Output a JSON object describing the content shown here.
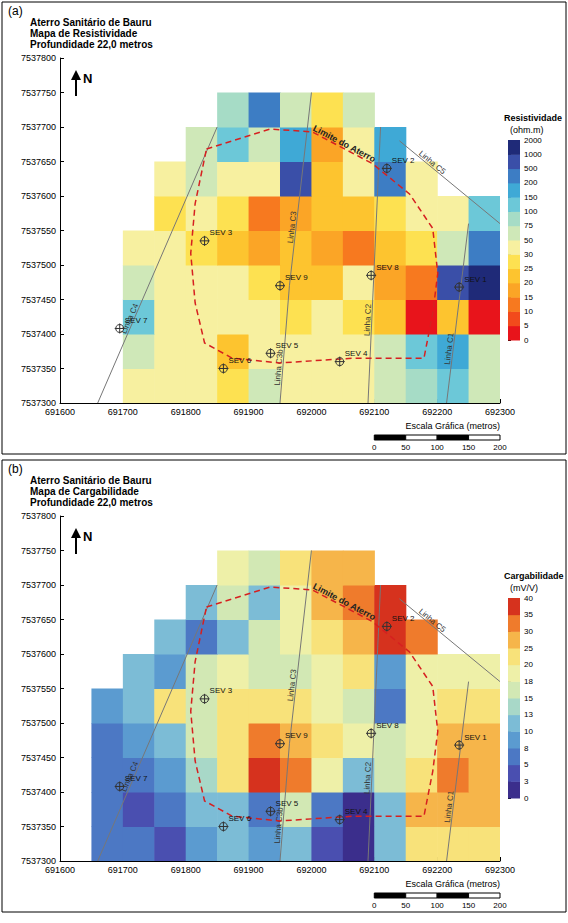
{
  "chart_data": [
    {
      "type": "heatmap",
      "label": "(a)",
      "title": "Aterro Sanitário de Bauru",
      "subtitle": "Mapa de Resistividade",
      "depth_label": "Profundidade 22,0 metros",
      "north": "N",
      "xlim": [
        691600,
        692300
      ],
      "xticks": [
        691600,
        691700,
        691800,
        691900,
        692000,
        692100,
        692200,
        692300
      ],
      "ylim": [
        7537300,
        7537800
      ],
      "yticks": [
        7537300,
        7537350,
        7537400,
        7537450,
        7537500,
        7537550,
        7537600,
        7537650,
        7537700,
        7537750,
        7537800
      ],
      "colorbar": {
        "title": "Resistividade",
        "unit": "(ohm.m)",
        "ticks": [
          0,
          5,
          10,
          15,
          20,
          25,
          30,
          50,
          75,
          100,
          150,
          200,
          500,
          1000,
          2000
        ],
        "colors": [
          "#e8141b",
          "#f24a1c",
          "#f7791f",
          "#fba526",
          "#fdc42f",
          "#fde151",
          "#f7f0a0",
          "#cfe8b8",
          "#a6dcc6",
          "#6cc8d8",
          "#3fa9d6",
          "#3d7dc4",
          "#3a4fa8",
          "#1f2a78"
        ]
      },
      "cells": {
        "x": [
          691625,
          691675,
          691725,
          691775,
          691825,
          691875,
          691925,
          691975,
          692025,
          692075,
          692125,
          692175,
          692225,
          692275
        ],
        "y": [
          7537325,
          7537375,
          7537425,
          7537475,
          7537525,
          7537575,
          7537625,
          7537675,
          7537725
        ],
        "values": [
          [
            null,
            null,
            40,
            35,
            35,
            25,
            50,
            35,
            30,
            40,
            60,
            80,
            100,
            60
          ],
          [
            null,
            null,
            50,
            40,
            30,
            20,
            30,
            40,
            35,
            30,
            50,
            100,
            150,
            50
          ],
          [
            null,
            null,
            100,
            40,
            30,
            30,
            35,
            25,
            30,
            25,
            20,
            3,
            20,
            2
          ],
          [
            null,
            null,
            50,
            35,
            30,
            30,
            25,
            20,
            20,
            30,
            15,
            12,
            500,
            1000
          ],
          [
            null,
            null,
            30,
            30,
            25,
            20,
            15,
            20,
            15,
            10,
            20,
            25,
            50,
            200
          ],
          [
            null,
            null,
            null,
            25,
            30,
            25,
            12,
            15,
            20,
            20,
            25,
            30,
            40,
            100
          ],
          [
            null,
            null,
            null,
            40,
            50,
            35,
            30,
            500,
            20,
            30,
            200,
            40,
            null,
            null
          ],
          [
            null,
            null,
            null,
            null,
            60,
            100,
            50,
            150,
            15,
            40,
            150,
            null,
            null,
            null
          ],
          [
            null,
            null,
            null,
            null,
            null,
            75,
            200,
            50,
            25,
            50,
            null,
            null,
            null,
            null
          ]
        ]
      },
      "boundary": {
        "label": "Limite do Aterro",
        "x": [
          691833,
          691934,
          692001,
          692097,
          692156,
          692193,
          692201,
          692193,
          692179,
          692067,
          691949,
          691874,
          691830,
          691815,
          691808,
          691815
        ],
        "y": [
          7537668,
          7537697,
          7537693,
          7537647,
          7537603,
          7537553,
          7537488,
          7537430,
          7537365,
          7537365,
          7537358,
          7537365,
          7537387,
          7537445,
          7537517,
          7537589
        ]
      },
      "lines": [
        {
          "label": "Linha C1",
          "x": [
            692215,
            692250
          ],
          "y": [
            7537300,
            7537560
          ]
        },
        {
          "label": "Linha C2",
          "x": [
            692090,
            692110
          ],
          "y": [
            7537300,
            7537700
          ]
        },
        {
          "label": "Linha C3b",
          "x": [
            691950,
            691965
          ],
          "y": [
            7537300,
            7537470
          ]
        },
        {
          "label": "Linha C3",
          "x": [
            691965,
            692000
          ],
          "y": [
            7537470,
            7537750
          ]
        },
        {
          "label": "Linha C4",
          "x": [
            691660,
            691850
          ],
          "y": [
            7537300,
            7537700
          ]
        },
        {
          "label": "Linha C5",
          "x": [
            692140,
            692300
          ],
          "y": [
            7537680,
            7537560
          ]
        }
      ],
      "points": {
        "labels": [
          "SEV 1",
          "SEV 2",
          "SEV 3",
          "SEV 4",
          "SEV 5",
          "SEV 6",
          "SEV 7",
          "SEV 8",
          "SEV 9"
        ],
        "x": [
          692235,
          692120,
          691830,
          692045,
          691935,
          691860,
          691695,
          692095,
          691950
        ],
        "y": [
          7537468,
          7537640,
          7537535,
          7537360,
          7537372,
          7537350,
          7537408,
          7537485,
          7537470
        ]
      },
      "scale_bar": {
        "title": "Escala Gráfica (metros)",
        "ticks": [
          0,
          50,
          100,
          150,
          200
        ]
      }
    },
    {
      "type": "heatmap",
      "label": "(b)",
      "title": "Aterro Sanitário de Bauru",
      "subtitle": "Mapa de Cargabilidade",
      "depth_label": "Profundidade 22,0 metros",
      "north": "N",
      "xlim": [
        691600,
        692300
      ],
      "xticks": [
        691600,
        691700,
        691800,
        691900,
        692000,
        692100,
        692200,
        692300
      ],
      "ylim": [
        7537300,
        7537800
      ],
      "yticks": [
        7537300,
        7537350,
        7537400,
        7537450,
        7537500,
        7537550,
        7537600,
        7537650,
        7537700,
        7537750,
        7537800
      ],
      "colorbar": {
        "title": "Cargabilidade",
        "unit": "(mV/V)",
        "ticks": [
          0,
          3,
          5,
          8,
          10,
          13,
          15,
          18,
          20,
          25,
          30,
          35,
          40
        ],
        "colors": [
          "#3b2e8c",
          "#4a4fb0",
          "#4c78c4",
          "#5b9bd0",
          "#7cbcd6",
          "#a8d8c8",
          "#d2e8b4",
          "#eef0a8",
          "#f8e27a",
          "#f6b54a",
          "#ef7b2c",
          "#d6321e"
        ]
      },
      "cells": {
        "x": [
          691625,
          691675,
          691725,
          691775,
          691825,
          691875,
          691925,
          691975,
          692025,
          692075,
          692125,
          692175,
          692225,
          692275
        ],
        "y": [
          7537325,
          7537375,
          7537425,
          7537475,
          7537525,
          7537575,
          7537625,
          7537675,
          7537725
        ],
        "values": [
          [
            null,
            5,
            5,
            4,
            8,
            10,
            8,
            10,
            3,
            2,
            10,
            20,
            22,
            20
          ],
          [
            null,
            5,
            4,
            6,
            10,
            12,
            6,
            15,
            5,
            2,
            12,
            25,
            28,
            25
          ],
          [
            null,
            6,
            5,
            8,
            13,
            20,
            38,
            30,
            18,
            10,
            15,
            22,
            30,
            28
          ],
          [
            null,
            7,
            8,
            10,
            15,
            22,
            30,
            28,
            20,
            18,
            15,
            18,
            25,
            25
          ],
          [
            null,
            8,
            10,
            22,
            16,
            20,
            22,
            20,
            18,
            15,
            6,
            18,
            20,
            20
          ],
          [
            null,
            null,
            12,
            8,
            15,
            18,
            17,
            16,
            18,
            20,
            8,
            18,
            18,
            18
          ],
          [
            null,
            null,
            null,
            10,
            6,
            12,
            15,
            18,
            22,
            28,
            38,
            30,
            null,
            null
          ],
          [
            null,
            null,
            null,
            null,
            12,
            15,
            10,
            18,
            25,
            30,
            35,
            null,
            null,
            null
          ],
          [
            null,
            null,
            null,
            null,
            null,
            18,
            15,
            20,
            25,
            28,
            null,
            null,
            null,
            null
          ]
        ]
      },
      "boundary": {
        "label": "Limite do Aterro",
        "x": [
          691833,
          691934,
          692001,
          692097,
          692156,
          692193,
          692201,
          692193,
          692179,
          692067,
          691949,
          691874,
          691830,
          691815,
          691808,
          691815
        ],
        "y": [
          7537668,
          7537697,
          7537693,
          7537647,
          7537603,
          7537553,
          7537488,
          7537430,
          7537365,
          7537365,
          7537358,
          7537365,
          7537387,
          7537445,
          7537517,
          7537589
        ]
      },
      "lines": [
        {
          "label": "Linha C1",
          "x": [
            692215,
            692250
          ],
          "y": [
            7537300,
            7537560
          ]
        },
        {
          "label": "Linha C2",
          "x": [
            692090,
            692110
          ],
          "y": [
            7537300,
            7537700
          ]
        },
        {
          "label": "Linha C3b",
          "x": [
            691950,
            691965
          ],
          "y": [
            7537300,
            7537470
          ]
        },
        {
          "label": "Linha C3",
          "x": [
            691965,
            692000
          ],
          "y": [
            7537470,
            7537750
          ]
        },
        {
          "label": "Linha C4",
          "x": [
            691660,
            691850
          ],
          "y": [
            7537300,
            7537700
          ]
        },
        {
          "label": "Linha C5",
          "x": [
            692140,
            692300
          ],
          "y": [
            7537680,
            7537560
          ]
        }
      ],
      "points": {
        "labels": [
          "SEV 1",
          "SEV 2",
          "SEV 3",
          "SEV 4",
          "SEV 5",
          "SEV 6",
          "SEV 7",
          "SEV 8",
          "SEV 9"
        ],
        "x": [
          692235,
          692120,
          691830,
          692045,
          691935,
          691860,
          691695,
          692095,
          691950
        ],
        "y": [
          7537468,
          7537640,
          7537535,
          7537360,
          7537372,
          7537350,
          7537408,
          7537485,
          7537470
        ]
      },
      "scale_bar": {
        "title": "Escala Gráfica (metros)",
        "ticks": [
          0,
          50,
          100,
          150,
          200
        ]
      }
    }
  ]
}
